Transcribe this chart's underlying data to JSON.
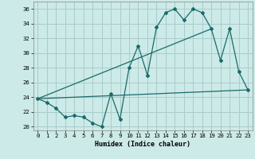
{
  "xlabel": "Humidex (Indice chaleur)",
  "ylabel": "",
  "background_color": "#cceae7",
  "grid_color": "#aacccc",
  "line_color": "#1a6b6b",
  "xlim": [
    -0.5,
    23.5
  ],
  "ylim": [
    19.5,
    37
  ],
  "yticks": [
    20,
    22,
    24,
    26,
    28,
    30,
    32,
    34,
    36
  ],
  "xticks": [
    0,
    1,
    2,
    3,
    4,
    5,
    6,
    7,
    8,
    9,
    10,
    11,
    12,
    13,
    14,
    15,
    16,
    17,
    18,
    19,
    20,
    21,
    22,
    23
  ],
  "series1_x": [
    0,
    1,
    2,
    3,
    4,
    5,
    6,
    7,
    8,
    9,
    10,
    11,
    12,
    13,
    14,
    15,
    16,
    17,
    18,
    19,
    20,
    21,
    22,
    23
  ],
  "series1_y": [
    23.8,
    23.3,
    22.5,
    21.3,
    21.5,
    21.3,
    20.5,
    20.0,
    24.5,
    21.0,
    28.0,
    31.0,
    27.0,
    33.5,
    35.5,
    36.0,
    34.5,
    36.0,
    35.5,
    33.3,
    29.0,
    33.3,
    27.5,
    25.0
  ],
  "series2_x": [
    0,
    23
  ],
  "series2_y": [
    23.8,
    25.0
  ],
  "series3_x": [
    0,
    19
  ],
  "series3_y": [
    23.8,
    33.3
  ]
}
